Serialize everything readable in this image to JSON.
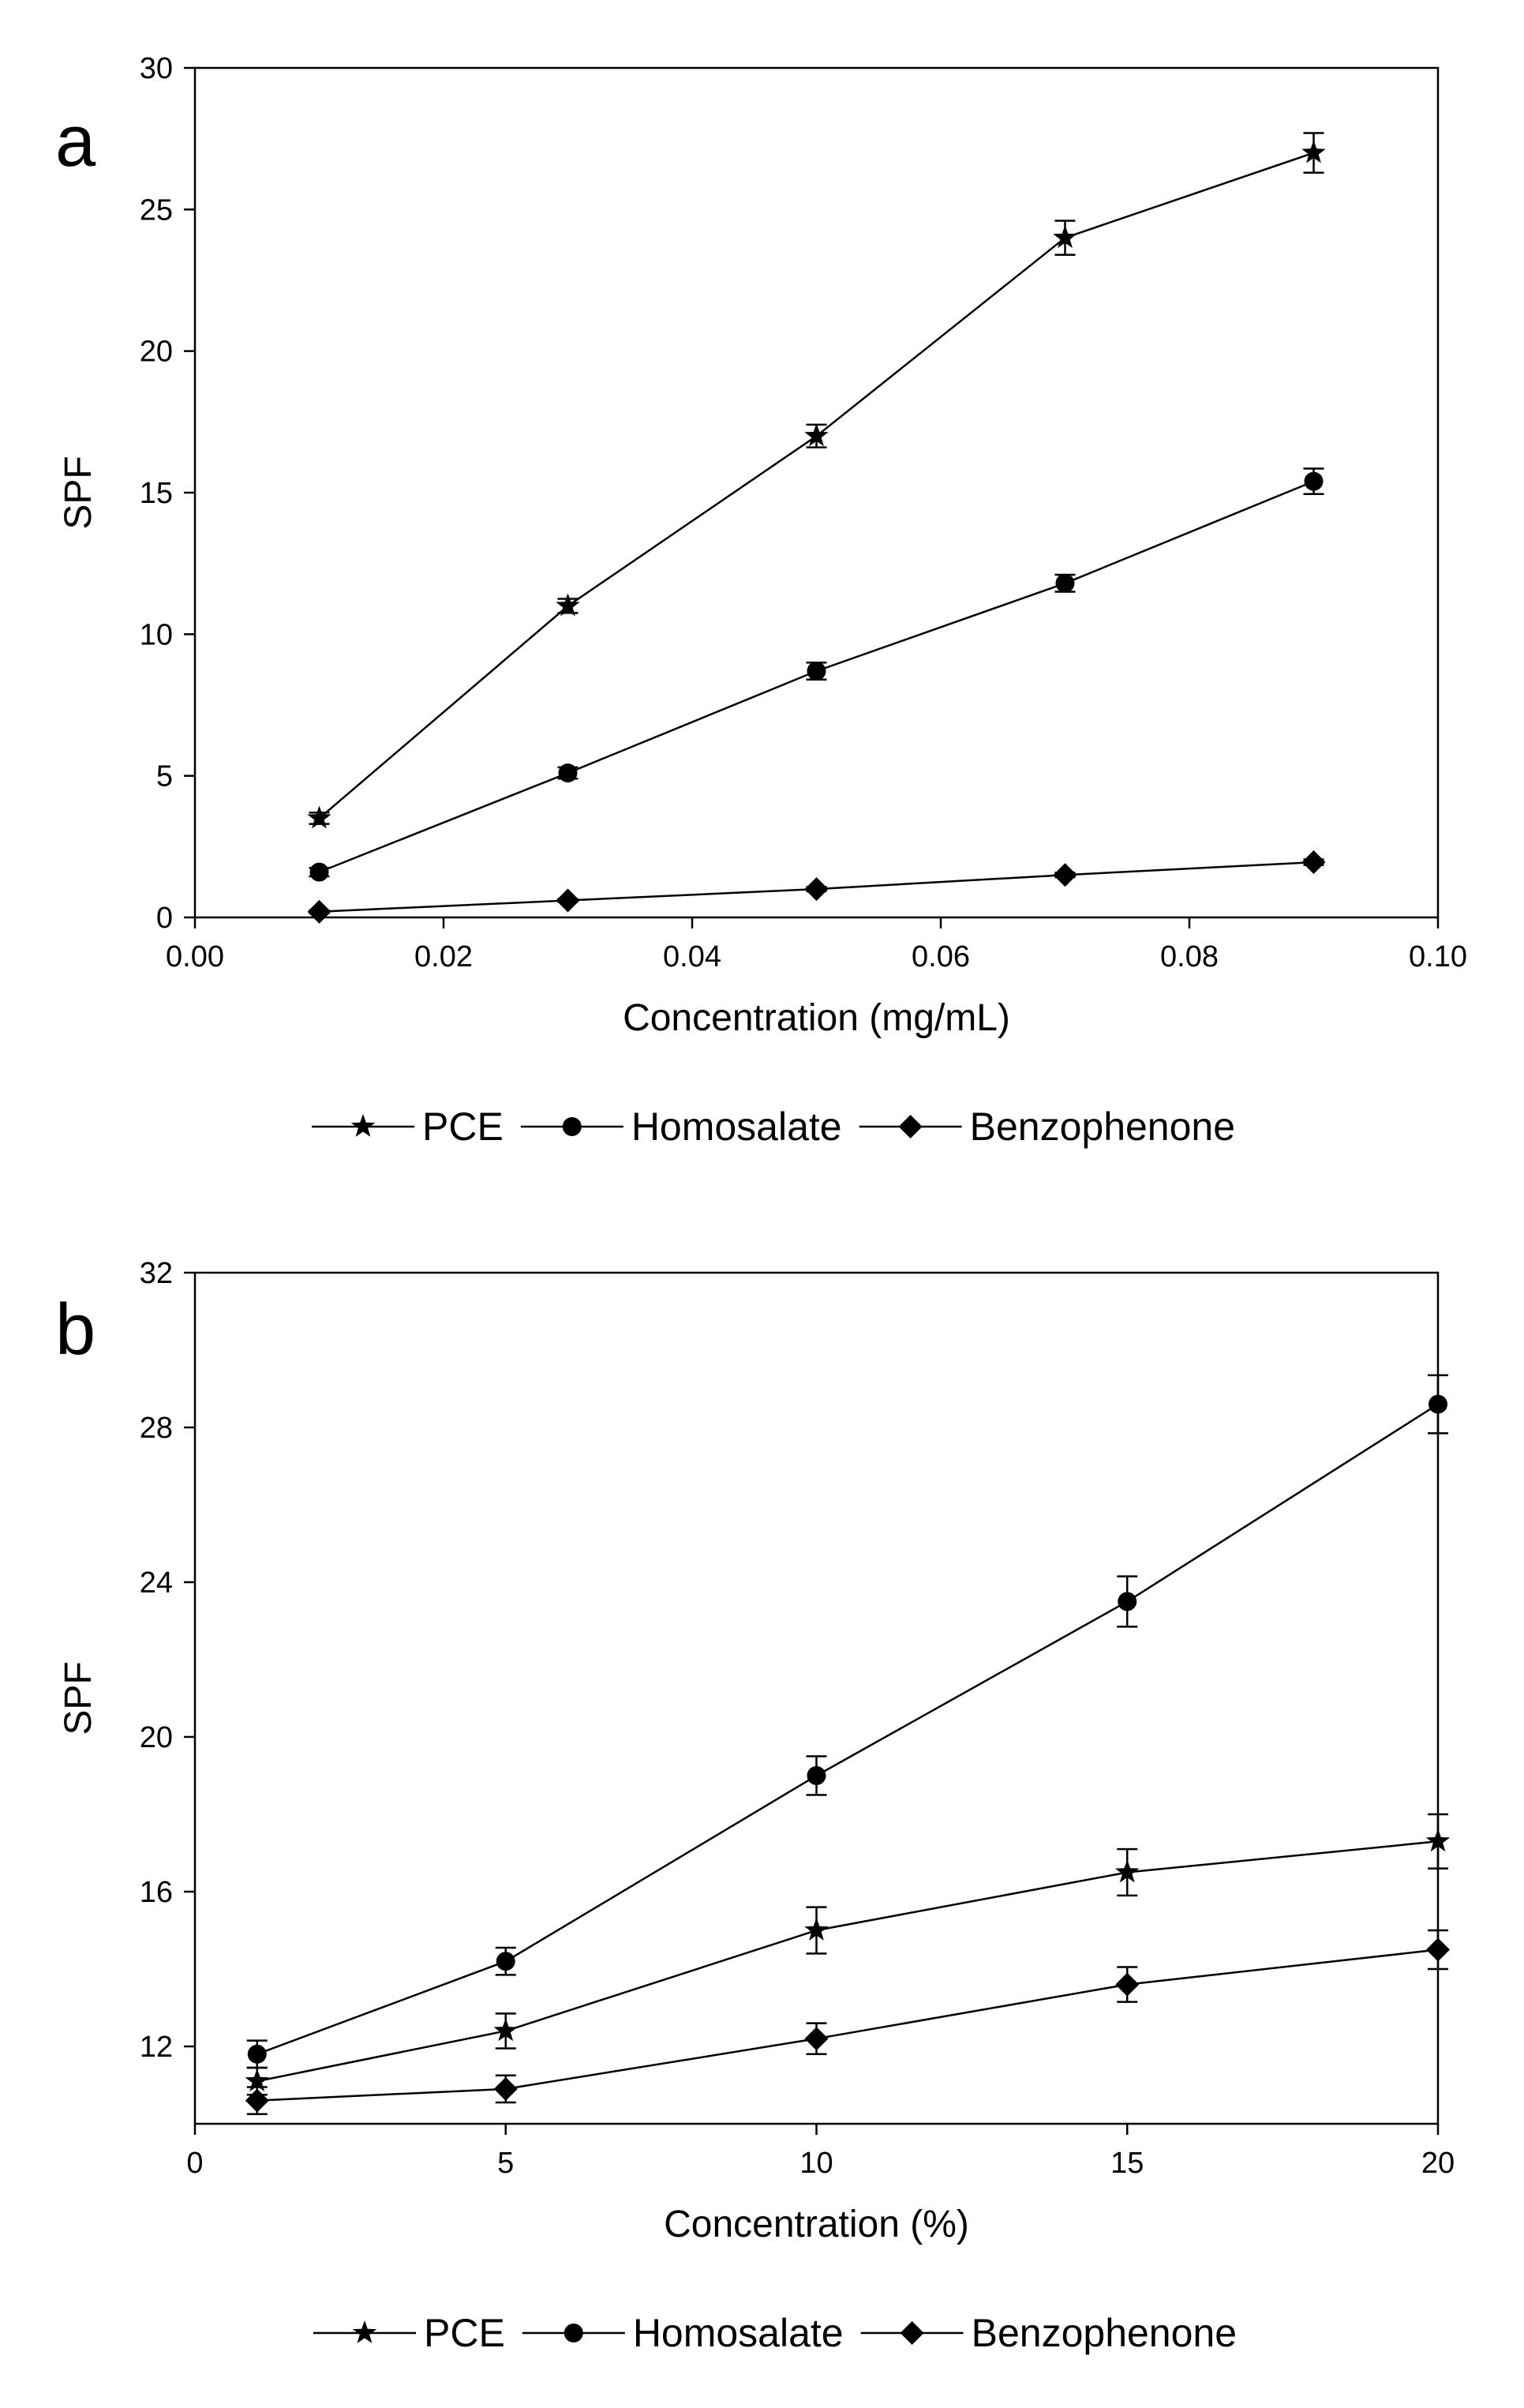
{
  "chart_data": [
    {
      "type": "line",
      "panel_label": "a",
      "xlabel": "Concentration (mg/mL)",
      "ylabel": "SPF",
      "xlim": [
        0.0,
        0.1
      ],
      "ylim": [
        0,
        30
      ],
      "xticks": [
        0.0,
        0.02,
        0.04,
        0.06,
        0.08,
        0.1
      ],
      "xtick_labels": [
        "0.00",
        "0.02",
        "0.04",
        "0.06",
        "0.08",
        "0.10"
      ],
      "yticks": [
        0,
        5,
        10,
        15,
        20,
        25,
        30
      ],
      "ytick_labels": [
        "0",
        "5",
        "10",
        "15",
        "20",
        "25",
        "30"
      ],
      "x": [
        0.01,
        0.03,
        0.05,
        0.07,
        0.09
      ],
      "series": [
        {
          "name": "PCE",
          "marker": "star",
          "values": [
            3.5,
            11.0,
            17.0,
            24.0,
            27.0
          ],
          "errors": [
            0.2,
            0.25,
            0.4,
            0.6,
            0.7
          ]
        },
        {
          "name": "Homosalate",
          "marker": "circle",
          "values": [
            1.6,
            5.1,
            8.7,
            11.8,
            15.4
          ],
          "errors": [
            0.15,
            0.2,
            0.3,
            0.3,
            0.45
          ]
        },
        {
          "name": "Benzophenone",
          "marker": "diamond",
          "values": [
            0.2,
            0.6,
            1.0,
            1.5,
            1.95
          ],
          "errors": [
            0.05,
            0.05,
            0.08,
            0.08,
            0.1
          ]
        }
      ],
      "legend": [
        "PCE",
        "Homosalate",
        "Benzophenone"
      ],
      "legend_position": "bottom"
    },
    {
      "type": "line",
      "panel_label": "b",
      "xlabel": "Concentration (%)",
      "ylabel": "SPF",
      "xlim": [
        0,
        20
      ],
      "ylim": [
        10,
        32
      ],
      "xticks": [
        0,
        5,
        10,
        15,
        20
      ],
      "xtick_labels": [
        "0",
        "5",
        "10",
        "15",
        "20"
      ],
      "yticks": [
        12,
        16,
        20,
        24,
        28,
        32
      ],
      "ytick_labels": [
        "12",
        "16",
        "20",
        "24",
        "28",
        "32"
      ],
      "x": [
        1,
        5,
        10,
        15,
        20
      ],
      "series": [
        {
          "name": "PCE",
          "marker": "star",
          "values": [
            11.1,
            12.4,
            15.0,
            16.5,
            17.3
          ],
          "errors": [
            0.35,
            0.45,
            0.6,
            0.6,
            0.7
          ]
        },
        {
          "name": "Homosalate",
          "marker": "circle",
          "values": [
            11.8,
            14.2,
            19.0,
            23.5,
            28.6
          ],
          "errors": [
            0.35,
            0.35,
            0.5,
            0.65,
            0.75
          ]
        },
        {
          "name": "Benzophenone",
          "marker": "diamond",
          "values": [
            10.6,
            10.9,
            12.2,
            13.6,
            14.5
          ],
          "errors": [
            0.35,
            0.35,
            0.4,
            0.45,
            0.5
          ]
        }
      ],
      "legend": [
        "PCE",
        "Homosalate",
        "Benzophenone"
      ],
      "legend_position": "bottom"
    }
  ]
}
